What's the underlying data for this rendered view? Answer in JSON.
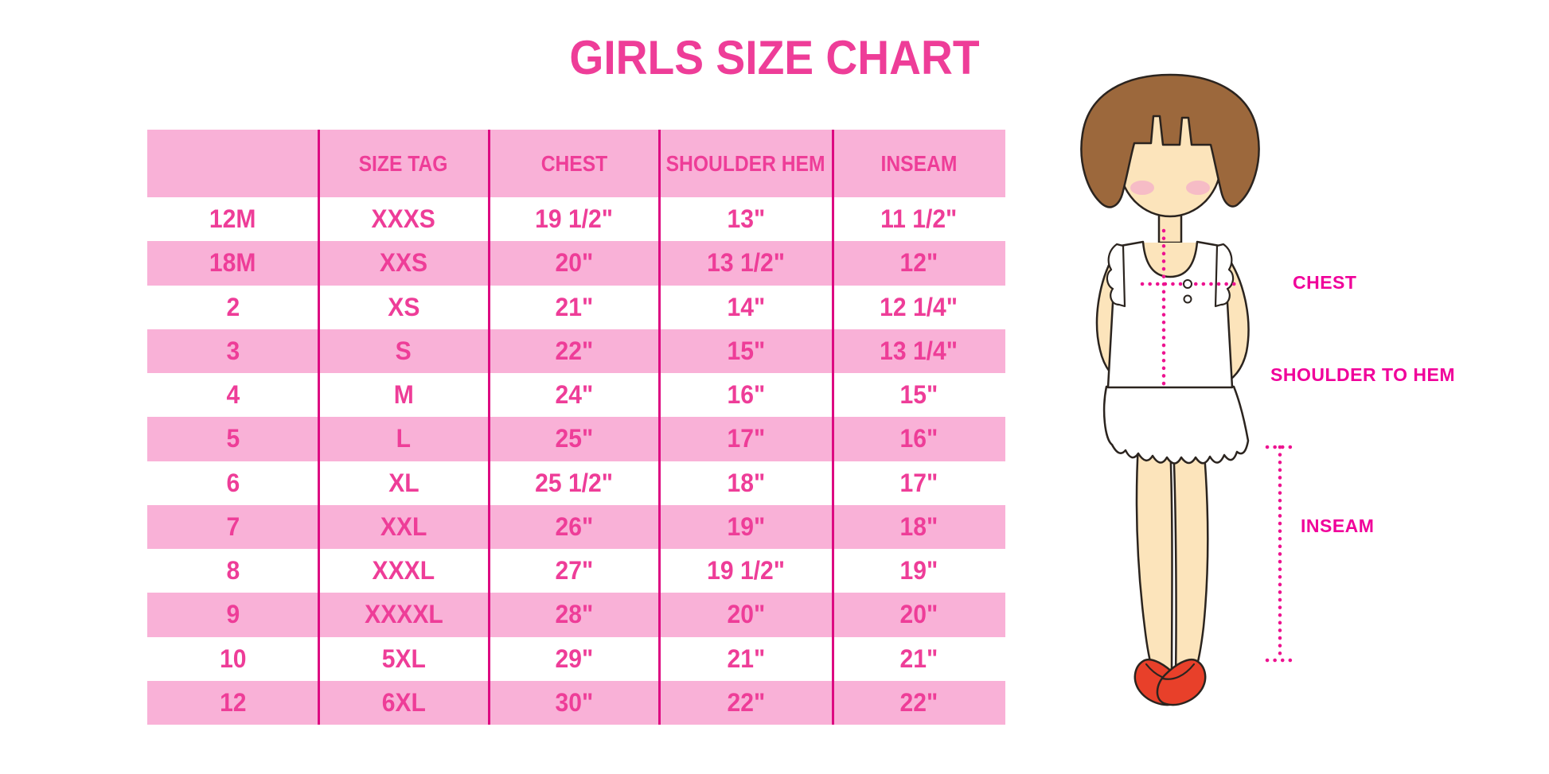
{
  "title": "GIRLS SIZE CHART",
  "chart_data": {
    "type": "table",
    "title": "GIRLS SIZE CHART",
    "columns": [
      "",
      "SIZE TAG",
      "CHEST",
      "SHOULDER HEM",
      "INSEAM"
    ],
    "rows": [
      [
        "12M",
        "XXXS",
        "19 1/2\"",
        "13\"",
        "11 1/2\""
      ],
      [
        "18M",
        "XXS",
        "20\"",
        "13 1/2\"",
        "12\""
      ],
      [
        "2",
        "XS",
        "21\"",
        "14\"",
        "12 1/4\""
      ],
      [
        "3",
        "S",
        "22\"",
        "15\"",
        "13 1/4\""
      ],
      [
        "4",
        "M",
        "24\"",
        "16\"",
        "15\""
      ],
      [
        "5",
        "L",
        "25\"",
        "17\"",
        "16\""
      ],
      [
        "6",
        "XL",
        "25 1/2\"",
        "18\"",
        "17\""
      ],
      [
        "7",
        "XXL",
        "26\"",
        "19\"",
        "18\""
      ],
      [
        "8",
        "XXXL",
        "27\"",
        "19 1/2\"",
        "19\""
      ],
      [
        "9",
        "XXXXL",
        "28\"",
        "20\"",
        "20\""
      ],
      [
        "10",
        "5XL",
        "29\"",
        "21\"",
        "21\""
      ],
      [
        "12",
        "6XL",
        "30\"",
        "22\"",
        "22\""
      ]
    ],
    "row_stripe_pattern": "alternating white/pink starting white",
    "units": "inches"
  },
  "diagram": {
    "chest_label": "CHEST",
    "shoulder_to_hem_label": "SHOULDER TO HEM",
    "inseam_label": "INSEAM",
    "figure": "toddler girl, brown bob hair, white sleeveless ruffle dress, red mary-jane shoes, dotted magenta measurement lines"
  },
  "colors": {
    "title_pink": "#ee3d98",
    "table_text": "#ee3d98",
    "cell_pink": "#f9b1d7",
    "divider": "#dd0a81",
    "label_magenta": "#f0009a",
    "dot_magenta": "#ed1390",
    "hair_brown": "#9c683c",
    "skin": "#fce4bb",
    "blush": "#f5b5c8",
    "shoe_red": "#e8402a",
    "outline": "#2b241f"
  }
}
